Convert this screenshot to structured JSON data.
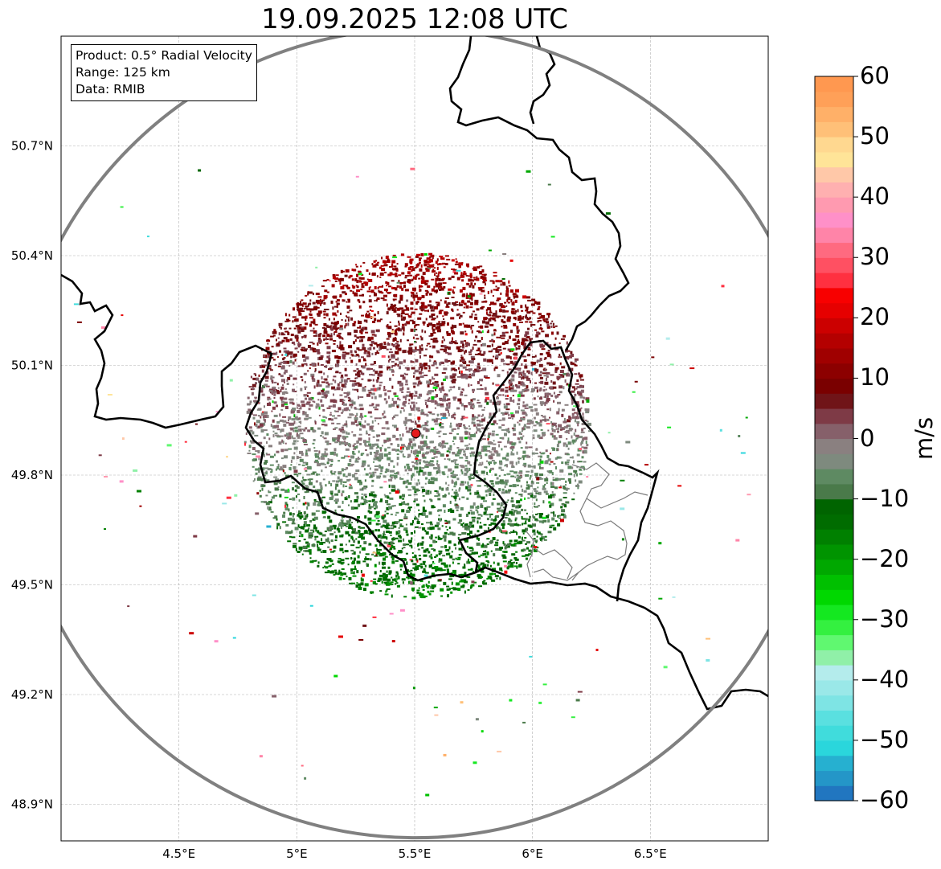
{
  "title": "19.09.2025 12:08 UTC",
  "info_box": {
    "product": "Product: 0.5° Radial Velocity",
    "range": "Range: 125 km",
    "data": "Data: RMIB"
  },
  "map": {
    "lon_range": [
      4.0,
      7.0
    ],
    "lat_range": [
      48.8,
      51.0
    ],
    "x_ticks": [
      {
        "value": 4.5,
        "label": "4.5°E"
      },
      {
        "value": 5.0,
        "label": "5°E"
      },
      {
        "value": 5.5,
        "label": "5.5°E"
      },
      {
        "value": 6.0,
        "label": "6°E"
      },
      {
        "value": 6.5,
        "label": "6.5°E"
      }
    ],
    "y_ticks": [
      {
        "value": 50.7,
        "label": "50.7°N"
      },
      {
        "value": 50.4,
        "label": "50.4°N"
      },
      {
        "value": 50.1,
        "label": "50.1°N"
      },
      {
        "value": 49.8,
        "label": "49.8°N"
      },
      {
        "value": 49.5,
        "label": "49.5°N"
      },
      {
        "value": 49.2,
        "label": "49.2°N"
      },
      {
        "value": 48.9,
        "label": "48.9°N"
      }
    ],
    "radar_site": {
      "lon": 5.505,
      "lat": 49.914,
      "color": "#e41a1c"
    },
    "range_ring_color": "#808080",
    "border_color": "#000000"
  },
  "colorbar": {
    "unit": "m/s",
    "min": -60,
    "max": 60,
    "tick_labels": [
      "60",
      "50",
      "40",
      "30",
      "20",
      "10",
      "0",
      "−10",
      "−20",
      "−30",
      "−40",
      "−50",
      "−60"
    ],
    "colors_bottom_to_top": [
      "#2176c0",
      "#2496c8",
      "#26b0d0",
      "#2ad6dc",
      "#40dcdc",
      "#5ae0e0",
      "#7ee4e4",
      "#9ae8e8",
      "#b4ecec",
      "#90f0a8",
      "#60f870",
      "#34f040",
      "#14e820",
      "#00d800",
      "#00c000",
      "#00a800",
      "#009400",
      "#008000",
      "#006c00",
      "#006400",
      "#4a7a4a",
      "#5e8a62",
      "#7e8a7e",
      "#8a8080",
      "#86606a",
      "#7e3a46",
      "#701418",
      "#7a0000",
      "#8c0000",
      "#a00000",
      "#b40000",
      "#cc0000",
      "#e60000",
      "#f80000",
      "#ff3040",
      "#ff5062",
      "#ff6a80",
      "#ff84a8",
      "#ff90c8",
      "#ff9ab0",
      "#ffb0b0",
      "#ffc8a8",
      "#ffe498",
      "#ffd890",
      "#ffc078",
      "#ffb068",
      "#ffa058",
      "#ff9850"
    ]
  }
}
